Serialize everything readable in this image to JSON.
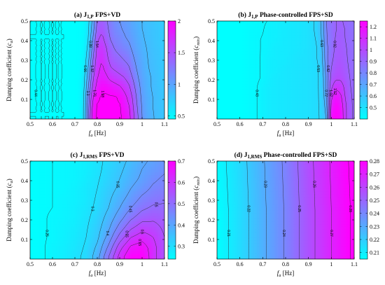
{
  "colors": {
    "low": "#00ffff",
    "high": "#ff00ff",
    "contour": "#2a2a2a"
  },
  "chart_data": [
    {
      "type": "heatmap",
      "title_main": "(a) J",
      "title_sub": "1,P",
      "title_rest": " FPS+VD",
      "xlabel_sym": "f",
      "xlabel_sub": "a",
      "xlabel_rest": " [Hz]",
      "ylabel_main": "Damping coefficient (",
      "ylabel_sym": "c",
      "ylabel_sub": "a",
      "ylabel_end": ")",
      "xlim": [
        0.5,
        1.1
      ],
      "ylim": [
        0,
        0.5
      ],
      "xticks": [
        "0.5",
        "0.6",
        "0.7",
        "0.8",
        "0.9",
        "1",
        "1.1"
      ],
      "yticks": [
        "0.1",
        "0.2",
        "0.3",
        "0.4",
        "0.5"
      ],
      "zlim": [
        0.45,
        2
      ],
      "colorbar_ticks": [
        "0.5",
        "1",
        "1.5",
        "2"
      ],
      "x": [
        0.5,
        0.55,
        0.6,
        0.65,
        0.7,
        0.72,
        0.74,
        0.76,
        0.78,
        0.8,
        0.82,
        0.84,
        0.86,
        0.88,
        0.9,
        0.92,
        0.94,
        0.96,
        0.98,
        1.0,
        1.02,
        1.04,
        1.06,
        1.08,
        1.1
      ],
      "y": [
        0.01,
        0.06,
        0.11,
        0.16,
        0.21,
        0.26,
        0.31,
        0.36,
        0.41,
        0.46,
        0.5
      ],
      "values": [
        [
          0.44,
          0.44,
          0.44,
          0.44,
          0.45,
          0.47,
          0.66,
          1.3,
          1.9,
          2.0,
          2.0,
          2.0,
          2.0,
          2.0,
          2.0,
          1.95,
          1.85,
          1.6,
          1.35,
          1.1,
          0.98,
          0.92,
          0.86,
          0.83,
          0.8
        ],
        [
          0.44,
          0.44,
          0.44,
          0.44,
          0.45,
          0.47,
          0.66,
          1.25,
          1.85,
          2.0,
          2.0,
          2.0,
          2.0,
          2.0,
          2.0,
          1.9,
          1.8,
          1.55,
          1.3,
          1.08,
          0.96,
          0.9,
          0.85,
          0.82,
          0.8
        ],
        [
          0.44,
          0.44,
          0.44,
          0.44,
          0.45,
          0.47,
          0.65,
          1.2,
          1.75,
          1.95,
          2.0,
          2.0,
          2.0,
          2.0,
          1.95,
          1.85,
          1.7,
          1.5,
          1.25,
          1.05,
          0.95,
          0.9,
          0.85,
          0.82,
          0.79
        ],
        [
          0.44,
          0.44,
          0.44,
          0.44,
          0.45,
          0.47,
          0.63,
          1.1,
          1.6,
          1.85,
          1.95,
          1.95,
          1.9,
          1.85,
          1.8,
          1.7,
          1.6,
          1.4,
          1.2,
          1.02,
          0.93,
          0.88,
          0.84,
          0.81,
          0.79
        ],
        [
          0.44,
          0.44,
          0.44,
          0.44,
          0.45,
          0.47,
          0.6,
          1.0,
          1.5,
          1.75,
          1.85,
          1.8,
          1.7,
          1.65,
          1.6,
          1.55,
          1.45,
          1.3,
          1.12,
          1.0,
          0.92,
          0.88,
          0.84,
          0.81,
          0.78
        ],
        [
          0.44,
          0.44,
          0.44,
          0.44,
          0.45,
          0.46,
          0.55,
          0.9,
          1.4,
          1.7,
          1.8,
          1.7,
          1.55,
          1.5,
          1.45,
          1.4,
          1.35,
          1.2,
          1.06,
          0.97,
          0.9,
          0.86,
          0.83,
          0.8,
          0.78
        ],
        [
          0.44,
          0.44,
          0.44,
          0.44,
          0.45,
          0.46,
          0.52,
          0.8,
          1.3,
          1.65,
          1.75,
          1.6,
          1.45,
          1.4,
          1.35,
          1.3,
          1.25,
          1.12,
          1.02,
          0.95,
          0.89,
          0.85,
          0.82,
          0.8,
          0.77
        ],
        [
          0.44,
          0.44,
          0.44,
          0.44,
          0.45,
          0.46,
          0.5,
          0.72,
          1.2,
          1.6,
          1.7,
          1.55,
          1.4,
          1.3,
          1.25,
          1.2,
          1.15,
          1.06,
          0.98,
          0.92,
          0.88,
          0.84,
          0.81,
          0.79,
          0.77
        ],
        [
          0.44,
          0.44,
          0.44,
          0.44,
          0.45,
          0.46,
          0.49,
          0.66,
          1.1,
          1.5,
          1.6,
          1.45,
          1.3,
          1.22,
          1.18,
          1.12,
          1.08,
          1.02,
          0.95,
          0.9,
          0.86,
          0.83,
          0.8,
          0.78,
          0.76
        ],
        [
          0.44,
          0.44,
          0.44,
          0.44,
          0.45,
          0.46,
          0.48,
          0.62,
          1.0,
          1.4,
          1.5,
          1.38,
          1.25,
          1.16,
          1.12,
          1.08,
          1.04,
          0.98,
          0.93,
          0.88,
          0.85,
          0.82,
          0.8,
          0.78,
          0.76
        ],
        [
          0.44,
          0.44,
          0.44,
          0.44,
          0.45,
          0.46,
          0.48,
          0.6,
          0.95,
          1.35,
          1.45,
          1.35,
          1.22,
          1.14,
          1.1,
          1.06,
          1.02,
          0.97,
          0.92,
          0.88,
          0.84,
          0.82,
          0.79,
          0.77,
          0.76
        ]
      ],
      "levels": [
        0.44,
        0.66,
        0.88,
        1.1,
        1.32,
        1.54,
        1.76,
        1.98
      ],
      "level_labels": [
        "0.44",
        "0.66",
        "0.88",
        "1.1",
        "1.32",
        "1.54",
        "1.76",
        "1.98"
      ]
    },
    {
      "type": "heatmap",
      "title_main": "(b) J",
      "title_sub": "1,P",
      "title_rest": " Phase-controlled FPS+SD",
      "xlabel_sym": "f",
      "xlabel_sub": "a",
      "xlabel_rest": " [Hz]",
      "ylabel_main": "Damping coefficient (",
      "ylabel_sym": "c",
      "ylabel_sub": "min",
      "ylabel_end": ")",
      "xlim": [
        0.5,
        1.1
      ],
      "ylim": [
        0,
        0.5
      ],
      "xticks": [
        "0.5",
        "0.6",
        "0.7",
        "0.8",
        "0.9",
        "1",
        "1.1"
      ],
      "yticks": [
        "0.1",
        "0.2",
        "0.3",
        "0.4",
        "0.5"
      ],
      "zlim": [
        0.4,
        1.25
      ],
      "colorbar_ticks": [
        "0.5",
        "0.6",
        "0.7",
        "0.8",
        "0.9",
        "1",
        "1.1",
        "1.2"
      ],
      "x": [
        0.5,
        0.55,
        0.6,
        0.63,
        0.66,
        0.69,
        0.72,
        0.75,
        0.8,
        0.85,
        0.9,
        0.94,
        0.96,
        0.98,
        1.0,
        1.02,
        1.04,
        1.06,
        1.08,
        1.1
      ],
      "y": [
        0.01,
        0.06,
        0.11,
        0.16,
        0.21,
        0.26,
        0.31,
        0.36,
        0.41,
        0.46,
        0.5
      ],
      "values": [
        [
          0.4,
          0.4,
          0.4,
          0.41,
          0.42,
          0.44,
          0.46,
          0.47,
          0.48,
          0.49,
          0.5,
          0.52,
          0.55,
          0.65,
          1.2,
          1.25,
          1.22,
          1.05,
          0.95,
          0.9
        ],
        [
          0.4,
          0.4,
          0.4,
          0.41,
          0.42,
          0.44,
          0.46,
          0.47,
          0.48,
          0.49,
          0.5,
          0.52,
          0.56,
          0.68,
          1.15,
          1.25,
          1.2,
          1.05,
          0.95,
          0.9
        ],
        [
          0.4,
          0.4,
          0.4,
          0.41,
          0.42,
          0.44,
          0.46,
          0.47,
          0.48,
          0.49,
          0.5,
          0.52,
          0.57,
          0.72,
          1.1,
          1.2,
          1.15,
          1.02,
          0.94,
          0.9
        ],
        [
          0.4,
          0.4,
          0.4,
          0.41,
          0.42,
          0.44,
          0.46,
          0.47,
          0.48,
          0.49,
          0.5,
          0.52,
          0.58,
          0.75,
          1.0,
          1.1,
          1.08,
          1.0,
          0.93,
          0.89
        ],
        [
          0.4,
          0.4,
          0.4,
          0.41,
          0.42,
          0.43,
          0.45,
          0.47,
          0.48,
          0.49,
          0.5,
          0.52,
          0.58,
          0.76,
          0.95,
          1.0,
          1.0,
          0.97,
          0.92,
          0.89
        ],
        [
          0.4,
          0.4,
          0.4,
          0.41,
          0.42,
          0.43,
          0.45,
          0.46,
          0.48,
          0.49,
          0.5,
          0.52,
          0.6,
          0.78,
          0.92,
          0.97,
          0.98,
          0.95,
          0.91,
          0.88
        ],
        [
          0.4,
          0.4,
          0.4,
          0.41,
          0.42,
          0.43,
          0.45,
          0.46,
          0.47,
          0.49,
          0.5,
          0.53,
          0.62,
          0.8,
          0.9,
          0.95,
          0.96,
          0.94,
          0.9,
          0.88
        ],
        [
          0.4,
          0.4,
          0.4,
          0.41,
          0.42,
          0.43,
          0.44,
          0.46,
          0.47,
          0.48,
          0.5,
          0.53,
          0.63,
          0.8,
          0.88,
          0.94,
          0.95,
          0.93,
          0.9,
          0.88
        ],
        [
          0.4,
          0.4,
          0.4,
          0.41,
          0.42,
          0.43,
          0.44,
          0.45,
          0.47,
          0.48,
          0.5,
          0.54,
          0.65,
          0.82,
          0.87,
          0.93,
          0.94,
          0.92,
          0.9,
          0.87
        ],
        [
          0.4,
          0.4,
          0.4,
          0.41,
          0.42,
          0.42,
          0.44,
          0.45,
          0.47,
          0.48,
          0.5,
          0.55,
          0.66,
          0.83,
          0.88,
          0.92,
          0.93,
          0.92,
          0.89,
          0.87
        ],
        [
          0.4,
          0.4,
          0.4,
          0.41,
          0.41,
          0.42,
          0.43,
          0.45,
          0.46,
          0.48,
          0.5,
          0.55,
          0.67,
          0.84,
          0.88,
          0.92,
          0.93,
          0.91,
          0.89,
          0.87
        ]
      ],
      "levels": [
        0.43,
        0.53,
        0.63,
        0.72,
        0.82,
        0.92,
        1.02,
        1.12
      ],
      "level_labels": [
        "0.43",
        "0.53",
        "0.63",
        "0.72",
        "0.82",
        "0.92",
        "1.02",
        "1.12"
      ]
    },
    {
      "type": "heatmap",
      "title_main": "(c) J",
      "title_sub": "1,RMS",
      "title_rest": " FPS+VD",
      "xlabel_sym": "f",
      "xlabel_sub": "a",
      "xlabel_rest": " [Hz]",
      "ylabel_main": "Damping coefficient (",
      "ylabel_sym": "c",
      "ylabel_sub": "a",
      "ylabel_end": ")",
      "xlim": [
        0.5,
        1.1
      ],
      "ylim": [
        0,
        0.5
      ],
      "xticks": [
        "0.5",
        "0.6",
        "0.7",
        "0.8",
        "0.9",
        "1",
        "1.1"
      ],
      "yticks": [
        "0.1",
        "0.2",
        "0.3",
        "0.4",
        "0.5"
      ],
      "zlim": [
        0.24,
        0.7
      ],
      "colorbar_ticks": [
        "0.3",
        "0.4",
        "0.5",
        "0.6",
        "0.7"
      ],
      "x": [
        0.5,
        0.55,
        0.6,
        0.65,
        0.7,
        0.75,
        0.8,
        0.85,
        0.9,
        0.95,
        1.0,
        1.05,
        1.1
      ],
      "y": [
        0.01,
        0.06,
        0.11,
        0.16,
        0.21,
        0.26,
        0.31,
        0.36,
        0.41,
        0.46,
        0.5
      ],
      "values": [
        [
          0.24,
          0.245,
          0.26,
          0.27,
          0.29,
          0.31,
          0.38,
          0.5,
          0.62,
          0.7,
          0.7,
          0.62,
          0.55
        ],
        [
          0.24,
          0.245,
          0.26,
          0.27,
          0.285,
          0.305,
          0.36,
          0.46,
          0.58,
          0.66,
          0.68,
          0.62,
          0.55
        ],
        [
          0.24,
          0.245,
          0.255,
          0.265,
          0.28,
          0.3,
          0.34,
          0.42,
          0.52,
          0.6,
          0.63,
          0.6,
          0.55
        ],
        [
          0.24,
          0.245,
          0.255,
          0.265,
          0.275,
          0.295,
          0.33,
          0.39,
          0.47,
          0.54,
          0.58,
          0.57,
          0.54
        ],
        [
          0.24,
          0.245,
          0.255,
          0.26,
          0.27,
          0.29,
          0.32,
          0.37,
          0.43,
          0.49,
          0.53,
          0.54,
          0.53
        ],
        [
          0.24,
          0.245,
          0.25,
          0.26,
          0.27,
          0.285,
          0.31,
          0.35,
          0.4,
          0.45,
          0.49,
          0.51,
          0.51
        ],
        [
          0.24,
          0.245,
          0.25,
          0.26,
          0.265,
          0.28,
          0.305,
          0.34,
          0.38,
          0.42,
          0.46,
          0.48,
          0.49
        ],
        [
          0.24,
          0.245,
          0.25,
          0.255,
          0.265,
          0.28,
          0.3,
          0.33,
          0.36,
          0.4,
          0.43,
          0.46,
          0.47
        ],
        [
          0.24,
          0.245,
          0.25,
          0.255,
          0.26,
          0.275,
          0.295,
          0.32,
          0.35,
          0.38,
          0.41,
          0.44,
          0.46
        ],
        [
          0.24,
          0.245,
          0.25,
          0.255,
          0.26,
          0.27,
          0.29,
          0.315,
          0.34,
          0.37,
          0.4,
          0.42,
          0.44
        ],
        [
          0.24,
          0.245,
          0.25,
          0.255,
          0.26,
          0.27,
          0.29,
          0.31,
          0.335,
          0.36,
          0.39,
          0.41,
          0.43
        ]
      ],
      "levels": [
        0.25,
        0.3,
        0.35,
        0.4,
        0.45,
        0.5,
        0.55,
        0.6,
        0.65
      ],
      "level_labels": [
        "0.25",
        "0.3",
        "0.35",
        "0.4",
        "0.45",
        "0.5",
        "0.55",
        "0.6",
        "0.65"
      ]
    },
    {
      "type": "heatmap",
      "title_main": "(d) J",
      "title_sub": "1,RMS",
      "title_rest": " Phase-controlled FPS+SD",
      "xlabel_sym": "f",
      "xlabel_sub": "a",
      "xlabel_rest": " [Hz]",
      "ylabel_main": "Damping coefficient (",
      "ylabel_sym": "c",
      "ylabel_sub": "min",
      "ylabel_end": ")",
      "xlim": [
        0.5,
        1.1
      ],
      "ylim": [
        0,
        0.5
      ],
      "xticks": [
        "0.5",
        "0.6",
        "0.7",
        "0.8",
        "0.9",
        "1",
        "1.1"
      ],
      "yticks": [
        "0.1",
        "0.2",
        "0.3",
        "0.4",
        "0.5"
      ],
      "zlim": [
        0.205,
        0.28
      ],
      "colorbar_ticks": [
        "0.21",
        "0.22",
        "0.23",
        "0.24",
        "0.25",
        "0.26",
        "0.27",
        "0.28"
      ],
      "x": [
        0.5,
        0.6,
        0.7,
        0.8,
        0.9,
        1.0,
        1.1
      ],
      "y": [
        0.01,
        0.25,
        0.5
      ],
      "values": [
        [
          0.205,
          0.215,
          0.228,
          0.241,
          0.256,
          0.27,
          0.282
        ],
        [
          0.205,
          0.215,
          0.228,
          0.241,
          0.256,
          0.27,
          0.282
        ],
        [
          0.206,
          0.216,
          0.229,
          0.242,
          0.257,
          0.271,
          0.283
        ]
      ],
      "levels": [
        0.21,
        0.22,
        0.23,
        0.24,
        0.25,
        0.26,
        0.27,
        0.28
      ],
      "level_labels": [
        "0.21",
        "0.22",
        "0.23",
        "0.24",
        "0.25",
        "0.26",
        "0.27",
        "0.28"
      ]
    }
  ]
}
